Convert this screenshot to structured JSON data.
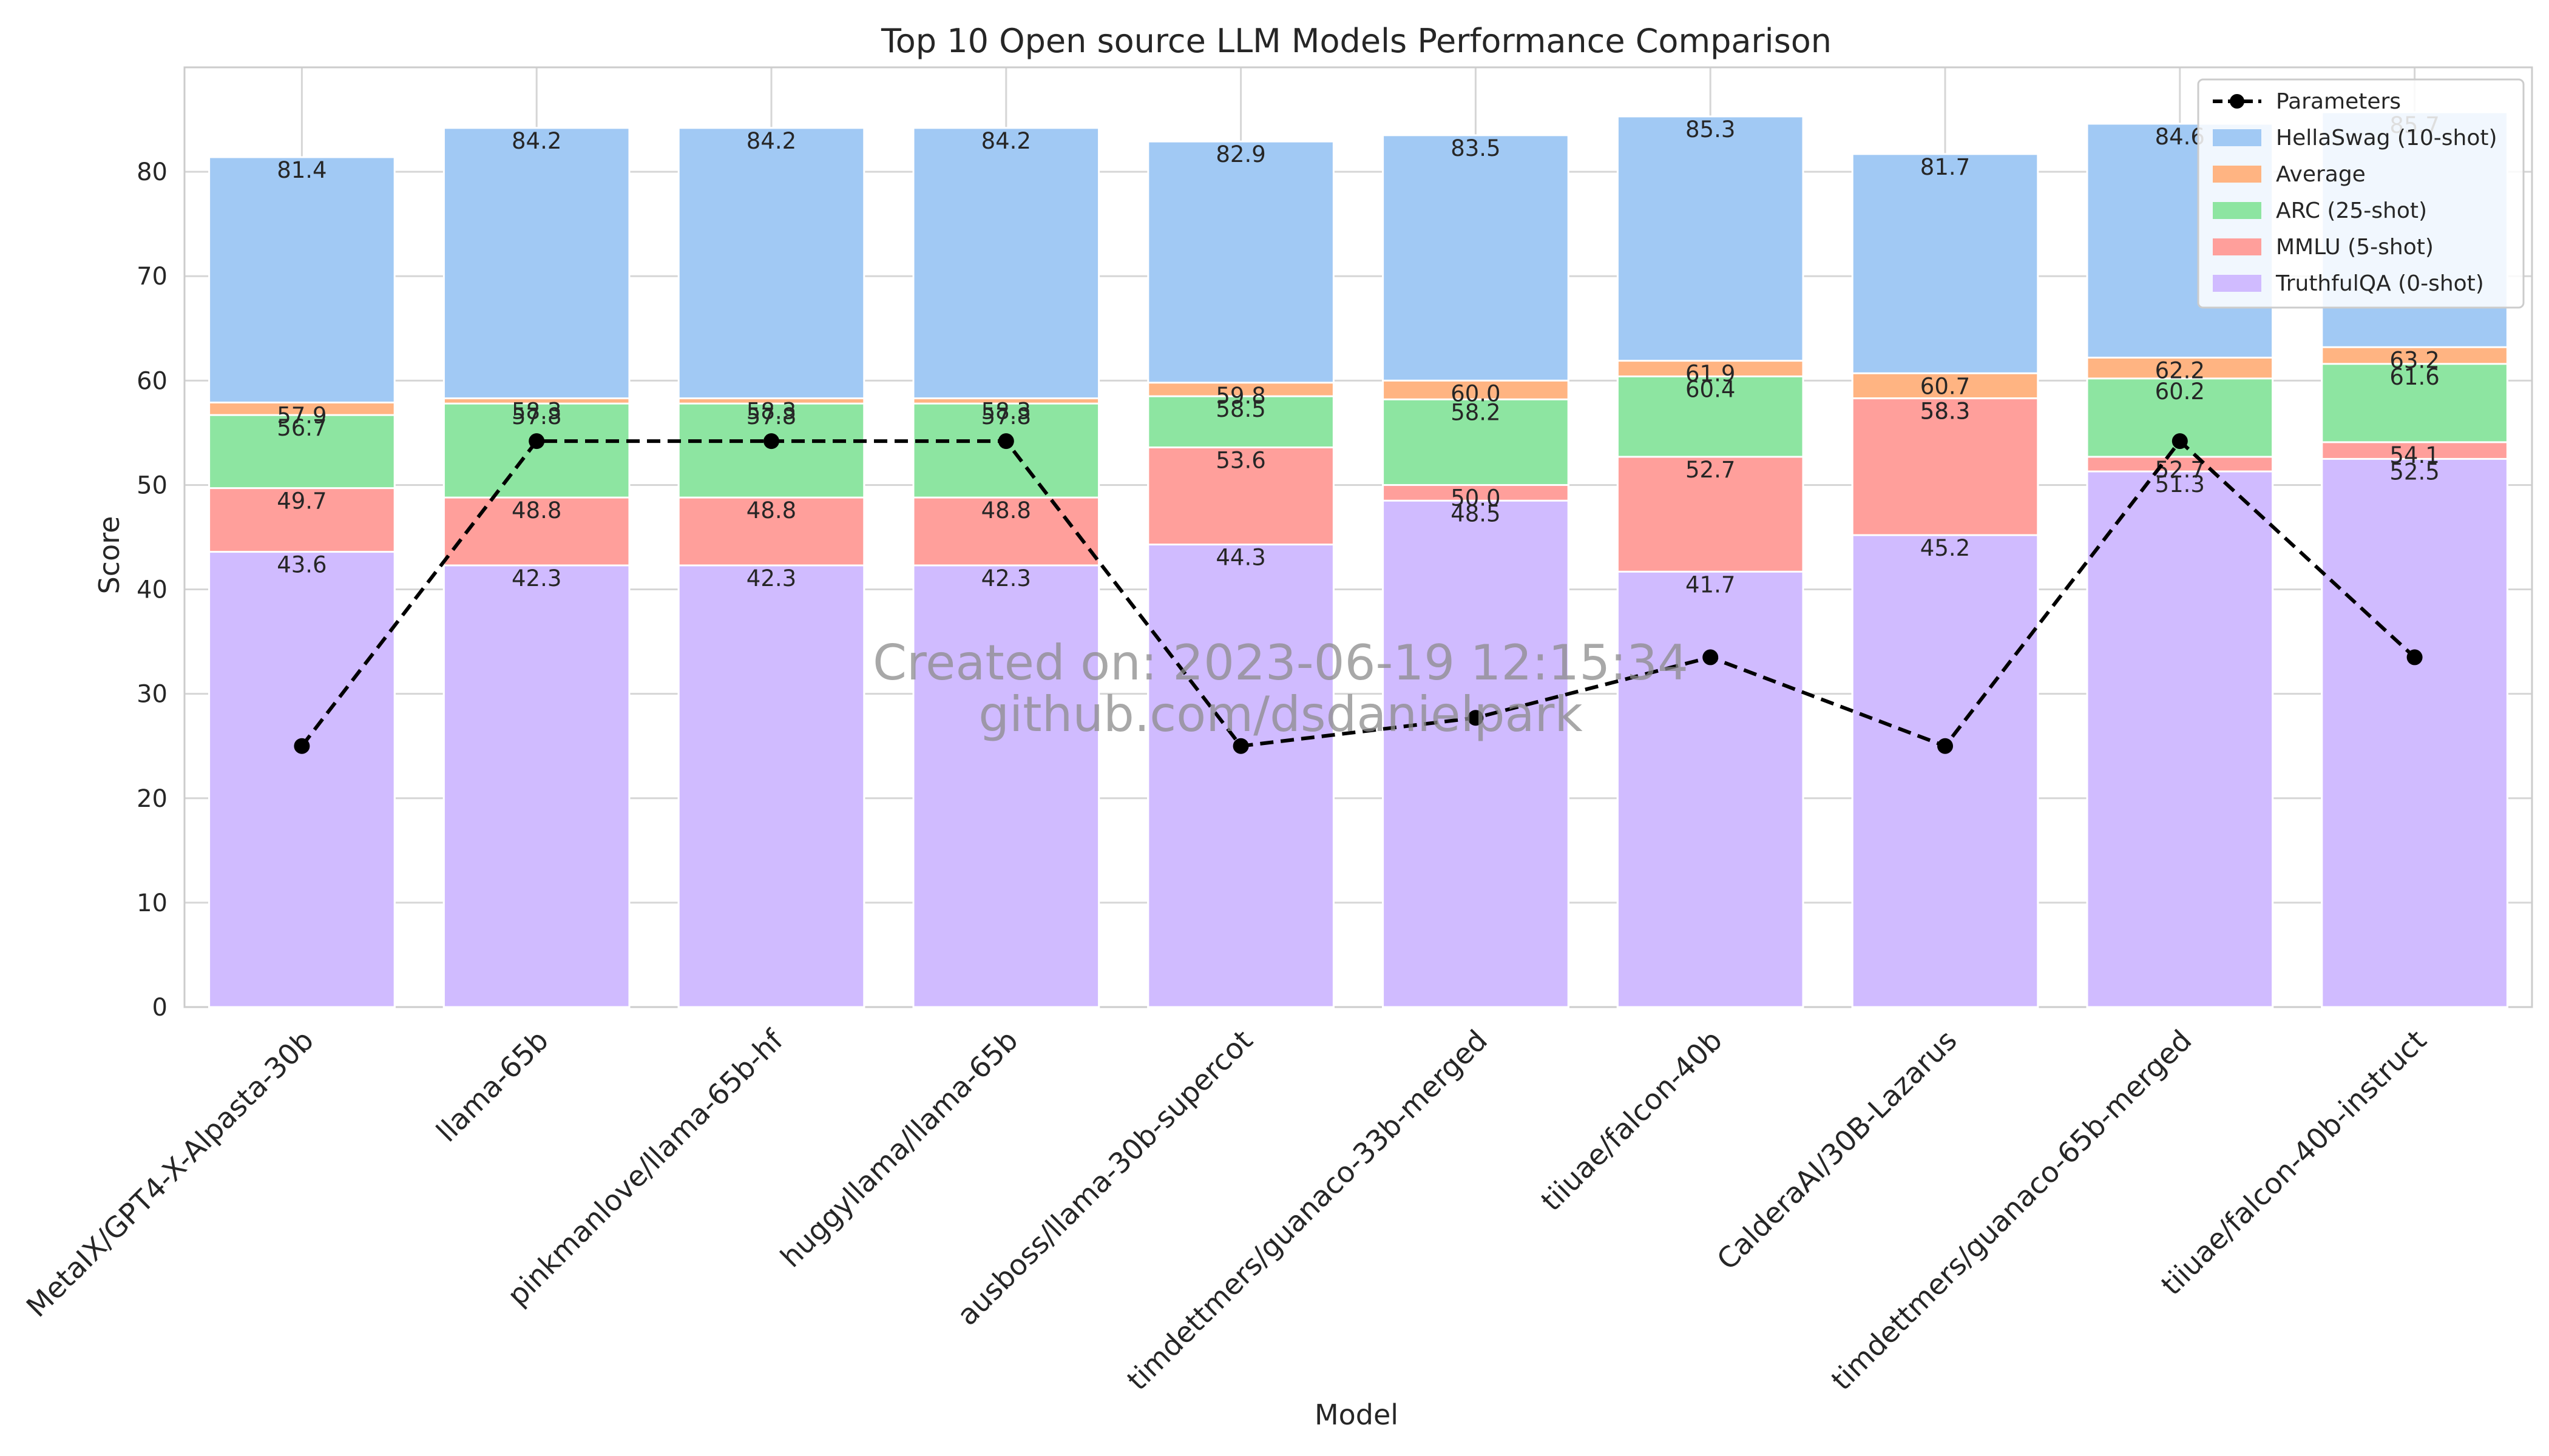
{
  "chart_data": {
    "type": "bar",
    "title": "Top 10 Open source LLM Models Performance Comparison",
    "xlabel": "Model",
    "ylabel": "Score",
    "ylim": [
      0,
      90
    ],
    "yticks": [
      0,
      10,
      20,
      30,
      40,
      50,
      60,
      70,
      80
    ],
    "grid": true,
    "legend_position": "top-right",
    "categories": [
      "MetaIX/GPT4-X-Alpasta-30b",
      "llama-65b",
      "pinkmanlove/llama-65b-hf",
      "huggyllama/llama-65b",
      "ausboss/llama-30b-supercot",
      "timdettmers/guanaco-33b-merged",
      "tiiuae/falcon-40b",
      "CalderaAI/30B-Lazarus",
      "timdettmers/guanaco-65b-merged",
      "tiiuae/falcon-40b-instruct"
    ],
    "series": [
      {
        "name": "HellaSwag (10-shot)",
        "color": "#a1c9f4",
        "values": [
          81.4,
          84.2,
          84.2,
          84.2,
          82.9,
          83.5,
          85.3,
          81.7,
          84.6,
          85.7
        ]
      },
      {
        "name": "Average",
        "color": "#ffb482",
        "values": [
          57.9,
          58.3,
          58.3,
          58.3,
          59.8,
          60.0,
          61.9,
          60.7,
          62.2,
          63.2
        ]
      },
      {
        "name": "ARC (25-shot)",
        "color": "#8de5a1",
        "values": [
          56.7,
          57.8,
          57.8,
          57.8,
          58.5,
          58.2,
          60.4,
          58.3,
          60.2,
          61.6
        ]
      },
      {
        "name": "MMLU (5-shot)",
        "color": "#ff9f9b",
        "values": [
          49.7,
          48.8,
          48.8,
          48.8,
          53.6,
          50.0,
          52.7,
          58.3,
          52.7,
          54.1
        ]
      },
      {
        "name": "TruthfulQA (0-shot)",
        "color": "#d0bbff",
        "values": [
          43.6,
          42.3,
          42.3,
          42.3,
          44.3,
          48.5,
          41.7,
          45.2,
          51.3,
          52.5
        ]
      }
    ],
    "line_series": {
      "name": "Parameters",
      "color": "#000000",
      "style": "dashed",
      "marker": "circle",
      "values": [
        25,
        54.2,
        54.2,
        54.2,
        25,
        27.7,
        33.5,
        25,
        54.2,
        33.5
      ]
    },
    "annotations": [
      "Created on: 2023-06-19 12:15:34",
      "github.com/dsdanielpark"
    ]
  }
}
